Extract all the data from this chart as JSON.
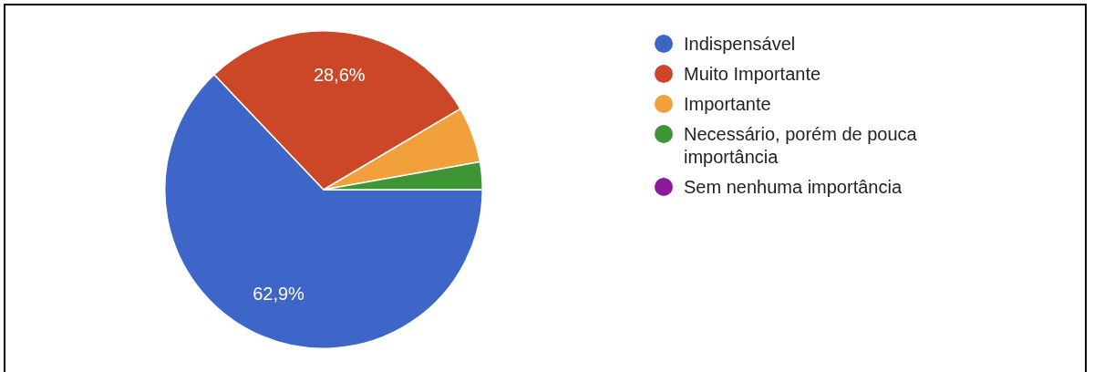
{
  "chart_data": {
    "type": "pie",
    "categories": [
      "Indispensável",
      "Muito Importante",
      "Importante",
      "Necessário, porém de pouca importância",
      "Sem nenhuma importância"
    ],
    "values": [
      62.9,
      28.6,
      5.7,
      2.8,
      0
    ],
    "colors": [
      "#3d66c8",
      "#cc4727",
      "#f2a03c",
      "#3d9536",
      "#8e1a9b"
    ],
    "value_labels": [
      "62,9%",
      "28,6%",
      null,
      null,
      null
    ],
    "legend": "right"
  }
}
